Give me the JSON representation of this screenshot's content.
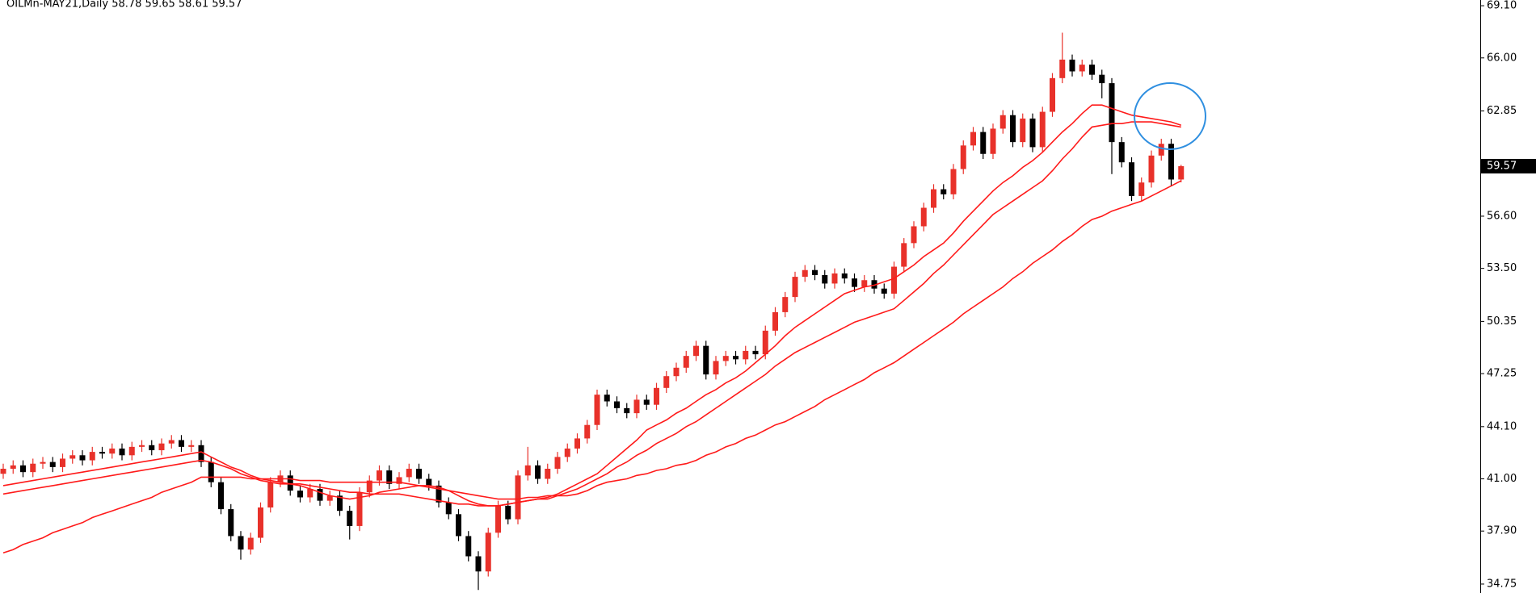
{
  "chart_data": {
    "type": "candlestick",
    "title": "OILMn-MAY21,Daily  58.78 59.65 58.61 59.57",
    "up_color": "#e8312a",
    "down_color": "#000000",
    "ma_color": "#ff1a1a",
    "ylim": [
      34.22,
      69.44
    ],
    "yticks": [
      34.75,
      {
        "value": 37.9,
        "label": "37.90"
      },
      {
        "value": 41,
        "label": "41.00"
      },
      {
        "value": 44.1,
        "label": "44.10"
      },
      47.25,
      50.35,
      {
        "value": 53.5,
        "label": "53.50"
      },
      {
        "value": 56.6,
        "label": "56.60"
      },
      62.85,
      {
        "value": 66,
        "label": "66.00"
      },
      {
        "value": 69.1,
        "label": "69.10"
      }
    ],
    "last_price": 59.57,
    "open": [
      41.3,
      41.6,
      41.8,
      41.4,
      41.9,
      42.0,
      41.7,
      42.2,
      42.4,
      42.1,
      42.6,
      42.5,
      42.8,
      42.4,
      42.9,
      43.0,
      42.7,
      43.1,
      43.3,
      42.9,
      43.0,
      42.0,
      40.8,
      39.2,
      37.6,
      36.8,
      37.5,
      39.3,
      40.8,
      41.2,
      40.3,
      39.9,
      40.4,
      39.7,
      40.0,
      39.1,
      38.2,
      40.2,
      40.9,
      41.5,
      40.7,
      41.1,
      41.6,
      41.0,
      40.6,
      39.6,
      38.9,
      37.6,
      36.4,
      35.5,
      37.8,
      39.4,
      38.6,
      41.2,
      41.8,
      41.0,
      41.6,
      42.3,
      42.8,
      43.4,
      44.2,
      46.0,
      45.6,
      45.2,
      44.9,
      45.7,
      45.4,
      46.4,
      47.1,
      47.6,
      48.3,
      48.9,
      47.2,
      48.0,
      48.3,
      48.1,
      48.6,
      48.4,
      49.8,
      50.9,
      51.8,
      53.0,
      53.4,
      53.1,
      52.6,
      53.2,
      52.9,
      52.4,
      52.8,
      52.3,
      52.0,
      53.6,
      55.0,
      56.0,
      57.1,
      58.2,
      57.9,
      59.4,
      60.8,
      61.6,
      60.3,
      61.8,
      62.6,
      61.0,
      62.4,
      60.7,
      62.8,
      64.8,
      65.9,
      65.2,
      65.6,
      65.0,
      64.5,
      61.0,
      59.8,
      57.8,
      58.6,
      60.2,
      60.9,
      58.78
    ],
    "high": [
      41.9,
      42.1,
      42.1,
      42.2,
      42.3,
      42.3,
      42.5,
      42.7,
      42.7,
      42.9,
      42.9,
      43.1,
      43.1,
      43.2,
      43.3,
      43.3,
      43.4,
      43.6,
      43.6,
      43.3,
      43.3,
      42.3,
      41.1,
      39.5,
      37.9,
      37.8,
      39.6,
      41.1,
      41.5,
      41.5,
      40.6,
      40.7,
      40.7,
      40.3,
      40.3,
      39.4,
      40.5,
      41.2,
      41.8,
      41.8,
      41.4,
      41.9,
      41.9,
      41.3,
      40.9,
      39.9,
      39.2,
      37.9,
      36.7,
      38.1,
      39.7,
      39.7,
      41.5,
      42.9,
      42.1,
      41.9,
      42.6,
      43.1,
      43.7,
      44.5,
      46.3,
      46.3,
      45.9,
      45.5,
      46.0,
      46.0,
      46.7,
      47.4,
      47.9,
      48.6,
      49.2,
      49.2,
      48.3,
      48.6,
      48.6,
      48.9,
      48.9,
      50.1,
      51.2,
      52.1,
      53.3,
      53.7,
      53.7,
      53.4,
      53.5,
      53.5,
      53.2,
      53.1,
      53.1,
      52.6,
      53.9,
      55.3,
      56.3,
      57.4,
      58.5,
      58.5,
      59.7,
      61.1,
      61.9,
      61.9,
      62.1,
      62.9,
      62.9,
      62.7,
      62.7,
      63.1,
      65.1,
      67.5,
      66.2,
      65.9,
      65.9,
      65.3,
      64.8,
      61.3,
      60.1,
      58.9,
      60.5,
      61.2,
      61.2,
      59.65
    ],
    "low": [
      41.0,
      41.3,
      41.1,
      41.1,
      41.6,
      41.4,
      41.4,
      41.9,
      41.8,
      41.8,
      42.2,
      42.2,
      42.1,
      42.1,
      42.6,
      42.4,
      42.4,
      42.8,
      42.6,
      42.6,
      41.7,
      40.5,
      38.9,
      37.3,
      36.2,
      36.5,
      37.2,
      39.0,
      40.5,
      40.0,
      39.6,
      39.6,
      39.4,
      39.4,
      38.8,
      37.4,
      37.9,
      39.9,
      40.6,
      40.4,
      40.4,
      40.8,
      40.7,
      40.3,
      39.3,
      38.6,
      37.3,
      36.1,
      34.4,
      35.2,
      37.5,
      38.3,
      38.3,
      40.9,
      40.7,
      40.7,
      41.3,
      42.0,
      42.5,
      43.1,
      43.9,
      45.3,
      44.9,
      44.6,
      44.6,
      45.1,
      45.1,
      46.1,
      46.8,
      47.3,
      48.0,
      46.9,
      46.9,
      47.7,
      47.8,
      47.8,
      48.1,
      48.1,
      49.5,
      50.6,
      51.5,
      52.7,
      52.8,
      52.3,
      52.3,
      52.6,
      52.1,
      52.1,
      52.0,
      51.7,
      51.7,
      53.3,
      54.7,
      55.7,
      56.8,
      57.6,
      57.6,
      59.1,
      60.5,
      60.0,
      60.0,
      61.5,
      60.7,
      60.7,
      60.4,
      60.4,
      62.5,
      64.5,
      64.9,
      64.9,
      64.7,
      63.6,
      59.1,
      59.5,
      57.5,
      57.5,
      58.3,
      59.9,
      58.4,
      58.61
    ],
    "close": [
      41.6,
      41.8,
      41.4,
      41.9,
      42.0,
      41.7,
      42.2,
      42.4,
      42.1,
      42.6,
      42.5,
      42.8,
      42.4,
      42.9,
      43.0,
      42.7,
      43.1,
      43.3,
      42.9,
      43.0,
      42.0,
      40.8,
      39.2,
      37.6,
      36.8,
      37.5,
      39.3,
      40.8,
      41.2,
      40.3,
      39.9,
      40.4,
      39.7,
      40.0,
      39.1,
      38.2,
      40.2,
      40.9,
      41.5,
      40.7,
      41.1,
      41.6,
      41.0,
      40.6,
      39.6,
      38.9,
      37.6,
      36.4,
      35.5,
      37.8,
      39.4,
      38.6,
      41.2,
      41.8,
      41.0,
      41.6,
      42.3,
      42.8,
      43.4,
      44.2,
      46.0,
      45.6,
      45.2,
      44.9,
      45.7,
      45.4,
      46.4,
      47.1,
      47.6,
      48.3,
      48.9,
      47.2,
      48.0,
      48.3,
      48.1,
      48.6,
      48.4,
      49.8,
      50.9,
      51.8,
      53.0,
      53.4,
      53.1,
      52.6,
      53.2,
      52.9,
      52.4,
      52.8,
      52.3,
      52.0,
      53.6,
      55.0,
      56.0,
      57.1,
      58.2,
      57.9,
      59.4,
      60.8,
      61.6,
      60.3,
      61.8,
      62.6,
      61.0,
      62.4,
      60.7,
      62.8,
      64.8,
      65.9,
      65.2,
      65.6,
      65.0,
      64.5,
      61.0,
      59.8,
      57.8,
      58.6,
      60.2,
      60.9,
      58.78,
      59.57
    ],
    "moving_averages": [
      {
        "values": [
          40.6,
          40.7,
          40.8,
          40.9,
          41.0,
          41.1,
          41.2,
          41.3,
          41.4,
          41.5,
          41.6,
          41.7,
          41.8,
          41.9,
          42.0,
          42.1,
          42.2,
          42.3,
          42.4,
          42.5,
          42.6,
          42.3,
          42.0,
          41.7,
          41.5,
          41.2,
          41.0,
          40.9,
          40.8,
          40.7,
          40.6,
          40.4,
          40.2,
          40.0,
          39.9,
          39.8,
          39.9,
          40.0,
          40.2,
          40.3,
          40.4,
          40.5,
          40.6,
          40.6,
          40.5,
          40.3,
          40.0,
          39.7,
          39.5,
          39.4,
          39.4,
          39.5,
          39.6,
          39.7,
          39.8,
          39.9,
          40.1,
          40.4,
          40.7,
          41.0,
          41.3,
          41.8,
          42.3,
          42.8,
          43.3,
          43.9,
          44.2,
          44.5,
          44.9,
          45.2,
          45.6,
          46.0,
          46.3,
          46.7,
          47.0,
          47.4,
          47.9,
          48.4,
          48.9,
          49.5,
          50.0,
          50.4,
          50.8,
          51.2,
          51.6,
          52.0,
          52.2,
          52.4,
          52.5,
          52.7,
          52.9,
          53.3,
          53.7,
          54.2,
          54.6,
          55.0,
          55.6,
          56.3,
          56.9,
          57.5,
          58.1,
          58.6,
          59.0,
          59.5,
          59.9,
          60.4,
          61.0,
          61.6,
          62.1,
          62.7,
          63.2,
          63.2,
          63.0,
          62.8,
          62.6,
          62.5,
          62.4,
          62.3,
          62.2,
          62.0
        ]
      },
      {
        "values": [
          40.1,
          40.2,
          40.3,
          40.4,
          40.5,
          40.6,
          40.7,
          40.8,
          40.9,
          41.0,
          41.1,
          41.2,
          41.3,
          41.4,
          41.5,
          41.6,
          41.7,
          41.8,
          41.9,
          42.0,
          42.1,
          42.0,
          41.8,
          41.6,
          41.3,
          41.1,
          40.9,
          40.8,
          40.7,
          40.7,
          40.7,
          40.6,
          40.5,
          40.4,
          40.3,
          40.2,
          40.2,
          40.1,
          40.1,
          40.1,
          40.1,
          40.0,
          39.9,
          39.8,
          39.7,
          39.6,
          39.5,
          39.5,
          39.4,
          39.4,
          39.4,
          39.5,
          39.6,
          39.7,
          39.8,
          39.8,
          40.0,
          40.2,
          40.4,
          40.7,
          41.0,
          41.3,
          41.7,
          42.0,
          42.4,
          42.7,
          43.1,
          43.4,
          43.7,
          44.1,
          44.4,
          44.8,
          45.2,
          45.6,
          46.0,
          46.4,
          46.8,
          47.2,
          47.7,
          48.1,
          48.5,
          48.8,
          49.1,
          49.4,
          49.7,
          50.0,
          50.3,
          50.5,
          50.7,
          50.9,
          51.1,
          51.6,
          52.1,
          52.6,
          53.2,
          53.7,
          54.3,
          54.9,
          55.5,
          56.1,
          56.7,
          57.1,
          57.5,
          57.9,
          58.3,
          58.7,
          59.3,
          60.0,
          60.6,
          61.3,
          61.9,
          62.0,
          62.1,
          62.1,
          62.2,
          62.2,
          62.2,
          62.1,
          62.0,
          61.9
        ]
      },
      {
        "values": [
          36.6,
          36.8,
          37.1,
          37.3,
          37.5,
          37.8,
          38.0,
          38.2,
          38.4,
          38.7,
          38.9,
          39.1,
          39.3,
          39.5,
          39.7,
          39.9,
          40.2,
          40.4,
          40.6,
          40.8,
          41.1,
          41.1,
          41.1,
          41.1,
          41.1,
          41.0,
          41.0,
          41.0,
          41.0,
          41.0,
          40.9,
          40.9,
          40.9,
          40.8,
          40.8,
          40.8,
          40.8,
          40.8,
          40.8,
          40.8,
          40.8,
          40.7,
          40.6,
          40.5,
          40.4,
          40.3,
          40.2,
          40.1,
          40.0,
          39.9,
          39.8,
          39.8,
          39.8,
          39.9,
          39.9,
          40.0,
          40.0,
          40.0,
          40.1,
          40.3,
          40.6,
          40.8,
          40.9,
          41.0,
          41.2,
          41.3,
          41.5,
          41.6,
          41.8,
          41.9,
          42.1,
          42.4,
          42.6,
          42.9,
          43.1,
          43.4,
          43.6,
          43.9,
          44.2,
          44.4,
          44.7,
          45.0,
          45.3,
          45.7,
          46.0,
          46.3,
          46.6,
          46.9,
          47.3,
          47.6,
          47.9,
          48.3,
          48.7,
          49.1,
          49.5,
          49.9,
          50.3,
          50.8,
          51.2,
          51.6,
          52.0,
          52.4,
          52.9,
          53.3,
          53.8,
          54.2,
          54.6,
          55.1,
          55.5,
          56.0,
          56.4,
          56.6,
          56.9,
          57.1,
          57.3,
          57.5,
          57.8,
          58.1,
          58.4,
          58.7
        ]
      }
    ]
  }
}
